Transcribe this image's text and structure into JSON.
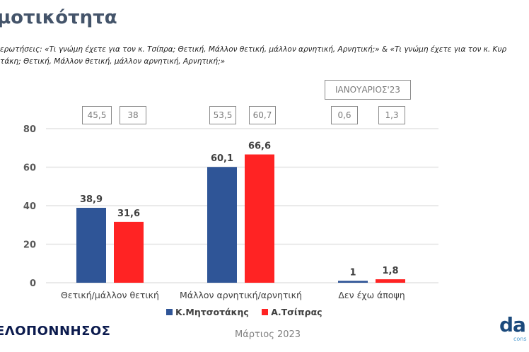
{
  "header": {
    "title": "μοτικότητα",
    "question_line1": "ερωτήσεις: «Τι γνώμη έχετε για τον κ. Τσίπρα; Θετική, Μάλλον θετική, μάλλον αρνητική, Αρνητική;» & «Τι γνώμη έχετε για τον κ. Κυρ",
    "question_line2": "τάκη; Θετική, Μάλλον θετική, μάλλον αρνητική, Αρνητική;»"
  },
  "comparison": {
    "label": "ΙΑΝΟΥΑΡΙΟΣ'23",
    "values": [
      [
        "45,5",
        "38"
      ],
      [
        "53,5",
        "60,7"
      ],
      [
        "0,6",
        "1,3"
      ]
    ]
  },
  "footer": {
    "brand": "ΕΛΟΠΟΝΝΗΣΟΣ",
    "date": "Μάρτιος 2023",
    "logo": "da",
    "logo_sub": "cons"
  },
  "colors": {
    "series1": "#2f5597",
    "series2": "#ff2323",
    "grid": "#e3e3e3",
    "axis_text": "#595959"
  },
  "chart_data": {
    "type": "bar",
    "title": "",
    "xlabel": "",
    "ylabel": "",
    "categories": [
      "Θετική/μάλλον θετική",
      "Μάλλον αρνητική/αρνητική",
      "Δεν έχω άποψη"
    ],
    "series": [
      {
        "name": "Κ.Μητσοτάκης",
        "values": [
          38.9,
          60.1,
          1
        ],
        "labels": [
          "38,9",
          "60,1",
          "1"
        ]
      },
      {
        "name": "Α.Τσίπρας",
        "values": [
          31.6,
          66.6,
          1.8
        ],
        "labels": [
          "31,6",
          "66,6",
          "1,8"
        ]
      }
    ],
    "ylim": [
      0,
      80
    ],
    "yticks": [
      0,
      20,
      40,
      60,
      80
    ],
    "grid": true,
    "legend": "bottom"
  }
}
